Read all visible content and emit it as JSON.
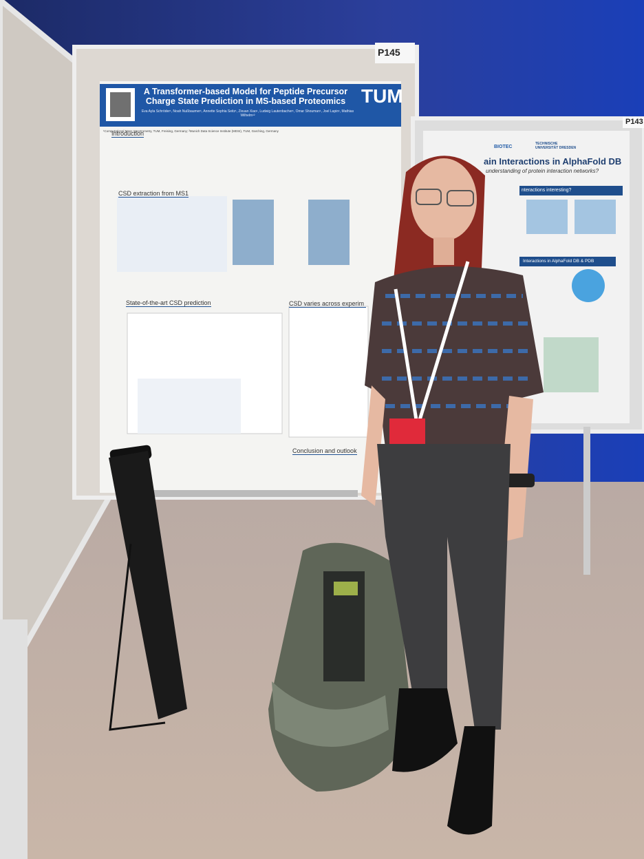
{
  "posters": [
    {
      "board": "P145",
      "title": "A Transformer-based Model for Peptide Precursor Charge State Prediction in MS-based Proteomics",
      "logo": "TUM",
      "authors": "Eva Ayla Schröder¹, Noah Nußbaumer¹, Annette Sophia Seitz¹, Zixuan Xiao¹, Ludwig Lautenbacher¹, Omar Shouman¹, Joel Lapin¹, Mathias Wilhelm¹²",
      "affiliation": "¹Computational Mass Spectrometry, TUM, Freising, Germany; ²Munich Data Science Institute (MDSI), TUM, Garching, Germany",
      "sections": [
        "Introduction",
        "CSD extraction from MS1",
        "State-of-the-art CSD prediction",
        "CSD varies across experim",
        "Conclusion and outlook"
      ]
    },
    {
      "board": "P143",
      "title": "ain Interactions in AlphaFold DB",
      "subtitle": "understanding of protein interaction networks?",
      "logos": [
        "BIOTEC",
        "TECHNISCHE UNIVERSITÄT DRESDEN"
      ],
      "sections": [
        "nteractions interesting?",
        "Interactions in AlphaFold DB & PDB"
      ]
    }
  ]
}
